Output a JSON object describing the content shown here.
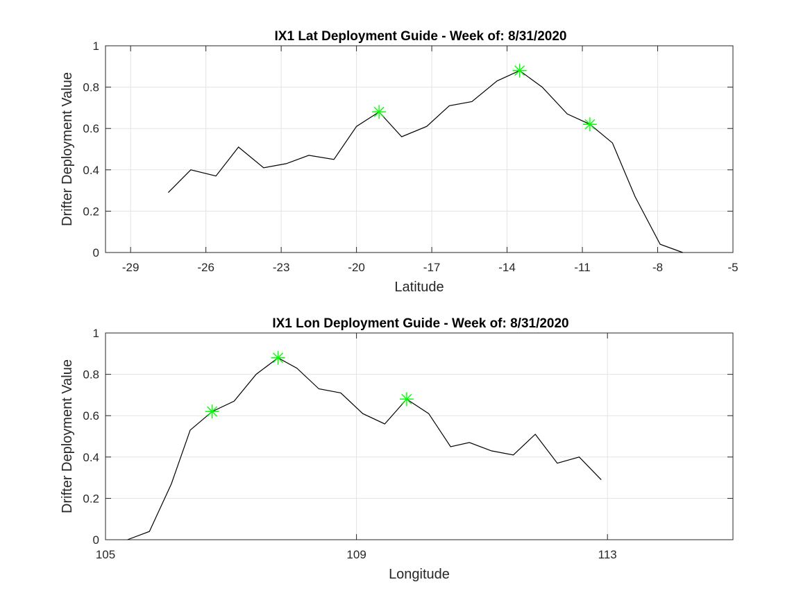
{
  "chart_data": [
    {
      "type": "line",
      "title": "IX1 Lat Deployment Guide - Week of: 8/31/2020",
      "xlabel": "Latitude",
      "ylabel": "Drifter Deployment Value",
      "xlim": [
        -30,
        -5
      ],
      "ylim": [
        0,
        1
      ],
      "xticks": [
        -29,
        -26,
        -23,
        -20,
        -17,
        -14,
        -11,
        -8,
        -5
      ],
      "xtick_labels": [
        "-29",
        "-26",
        "-23",
        "-20",
        "-17",
        "-14",
        "-11",
        "-8",
        "-5"
      ],
      "yticks": [
        0,
        0.2,
        0.4,
        0.6,
        0.8,
        1
      ],
      "ytick_labels": [
        "0",
        "0.2",
        "0.4",
        "0.6",
        "0.8",
        "1"
      ],
      "grid": true,
      "line_color": "#000000",
      "marker_color": "#00ff00",
      "x": [
        -27.5,
        -26.6,
        -25.6,
        -24.7,
        -23.7,
        -22.8,
        -21.9,
        -20.9,
        -20.0,
        -19.1,
        -18.2,
        -17.2,
        -16.3,
        -15.4,
        -14.4,
        -13.5,
        -12.6,
        -11.6,
        -10.7,
        -9.8,
        -8.9,
        -7.9,
        -7.0
      ],
      "y": [
        0.29,
        0.4,
        0.37,
        0.51,
        0.41,
        0.43,
        0.47,
        0.45,
        0.61,
        0.68,
        0.56,
        0.61,
        0.71,
        0.73,
        0.83,
        0.88,
        0.8,
        0.67,
        0.62,
        0.53,
        0.27,
        0.04,
        0.0
      ],
      "markers": [
        {
          "x": -19.1,
          "y": 0.68
        },
        {
          "x": -13.5,
          "y": 0.88
        },
        {
          "x": -10.7,
          "y": 0.62
        }
      ]
    },
    {
      "type": "line",
      "title": "IX1 Lon Deployment Guide - Week of: 8/31/2020",
      "xlabel": "Longitude",
      "ylabel": "Drifter Deployment Value",
      "xlim": [
        105,
        115
      ],
      "ylim": [
        0,
        1
      ],
      "xticks": [
        105,
        109,
        113
      ],
      "xtick_labels": [
        "105",
        "109",
        "113"
      ],
      "yticks": [
        0,
        0.2,
        0.4,
        0.6,
        0.8,
        1
      ],
      "ytick_labels": [
        "0",
        "0.2",
        "0.4",
        "0.6",
        "0.8",
        "1"
      ],
      "grid": true,
      "line_color": "#000000",
      "marker_color": "#00ff00",
      "x": [
        105.35,
        105.7,
        106.05,
        106.35,
        106.7,
        107.05,
        107.4,
        107.75,
        108.05,
        108.4,
        108.75,
        109.1,
        109.45,
        109.8,
        110.15,
        110.5,
        110.8,
        111.15,
        111.5,
        111.85,
        112.2,
        112.55,
        112.9,
        113.2,
        113.55
      ],
      "y": [
        0.0,
        0.04,
        0.27,
        0.53,
        0.62,
        0.67,
        0.8,
        0.88,
        0.83,
        0.73,
        0.71,
        0.61,
        0.56,
        0.68,
        0.61,
        0.45,
        0.47,
        0.43,
        0.41,
        0.51,
        0.37,
        0.4,
        0.29,
        null,
        null
      ],
      "markers": [
        {
          "x": 106.7,
          "y": 0.62
        },
        {
          "x": 107.75,
          "y": 0.88
        },
        {
          "x": 109.8,
          "y": 0.68
        }
      ]
    }
  ]
}
